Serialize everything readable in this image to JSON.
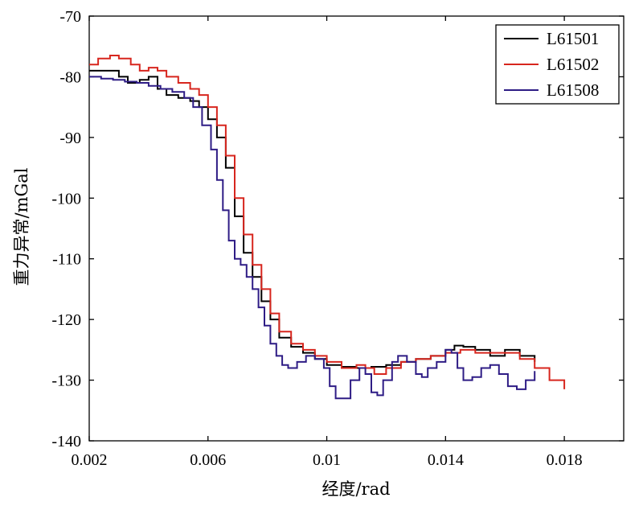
{
  "chart_data": {
    "type": "line",
    "xlabel": "经度/rad",
    "ylabel": "重力异常/mGal",
    "xlim": [
      0.002,
      0.02
    ],
    "ylim": [
      -140,
      -70
    ],
    "xticks": [
      "0.002",
      "0.006",
      "0.01",
      "0.014",
      "0.018"
    ],
    "xtick_values": [
      0.002,
      0.006,
      0.01,
      0.014,
      0.018
    ],
    "yticks": [
      "-70",
      "-80",
      "-90",
      "-100",
      "-110",
      "-120",
      "-130",
      "-140"
    ],
    "ytick_values": [
      -70,
      -80,
      -90,
      -100,
      -110,
      -120,
      -130,
      -140
    ],
    "grid": false,
    "legend_position": "top-right",
    "series": [
      {
        "name": "L61501",
        "color": "#000000",
        "x": [
          0.002,
          0.0025,
          0.003,
          0.0033,
          0.0037,
          0.004,
          0.0043,
          0.0046,
          0.005,
          0.0054,
          0.0057,
          0.006,
          0.0063,
          0.0066,
          0.0069,
          0.0072,
          0.0075,
          0.0078,
          0.0081,
          0.0084,
          0.0088,
          0.0092,
          0.0096,
          0.01,
          0.0105,
          0.011,
          0.0115,
          0.012,
          0.0125,
          0.013,
          0.0135,
          0.014,
          0.0143,
          0.0146,
          0.015,
          0.0155,
          0.016,
          0.0165,
          0.017
        ],
        "y": [
          -79,
          -79,
          -80,
          -81,
          -80.5,
          -80,
          -82,
          -83,
          -83.5,
          -84,
          -85,
          -87,
          -90,
          -95,
          -103,
          -109,
          -113,
          -117,
          -120,
          -123,
          -124.5,
          -125.5,
          -126.5,
          -127.5,
          -127.8,
          -128,
          -127.8,
          -127.5,
          -127,
          -126.5,
          -126,
          -125,
          -124.3,
          -124.5,
          -125,
          -126,
          -125,
          -126,
          -127
        ]
      },
      {
        "name": "L61502",
        "color": "#d7261e",
        "x": [
          0.002,
          0.0023,
          0.0027,
          0.003,
          0.0034,
          0.0037,
          0.004,
          0.0043,
          0.0046,
          0.005,
          0.0054,
          0.0057,
          0.006,
          0.0063,
          0.0066,
          0.0069,
          0.0072,
          0.0075,
          0.0078,
          0.0081,
          0.0084,
          0.0088,
          0.0092,
          0.0096,
          0.01,
          0.0105,
          0.011,
          0.0113,
          0.0116,
          0.012,
          0.0125,
          0.013,
          0.0135,
          0.014,
          0.0145,
          0.015,
          0.0155,
          0.016,
          0.0165,
          0.017,
          0.0175,
          0.018
        ],
        "y": [
          -78,
          -77,
          -76.5,
          -77,
          -78,
          -79,
          -78.5,
          -79,
          -80,
          -81,
          -82,
          -83,
          -85,
          -88,
          -93,
          -100,
          -106,
          -111,
          -115,
          -119,
          -122,
          -124,
          -125,
          -126,
          -127,
          -128,
          -127.5,
          -128,
          -129,
          -128,
          -127,
          -126.5,
          -126,
          -125.5,
          -125,
          -125.5,
          -125.5,
          -125.5,
          -126.5,
          -128,
          -130,
          -131.5
        ]
      },
      {
        "name": "L61508",
        "color": "#2e1c85",
        "x": [
          0.002,
          0.0024,
          0.0028,
          0.0032,
          0.0036,
          0.004,
          0.0044,
          0.0048,
          0.0052,
          0.0055,
          0.0058,
          0.0061,
          0.0063,
          0.0065,
          0.0067,
          0.0069,
          0.0071,
          0.0073,
          0.0075,
          0.0077,
          0.0079,
          0.0081,
          0.0083,
          0.0085,
          0.0087,
          0.009,
          0.0093,
          0.0096,
          0.0099,
          0.0101,
          0.0103,
          0.0105,
          0.0108,
          0.0111,
          0.0113,
          0.0115,
          0.0117,
          0.0119,
          0.0122,
          0.0124,
          0.0127,
          0.013,
          0.0132,
          0.0134,
          0.0137,
          0.014,
          0.0142,
          0.0144,
          0.0146,
          0.0149,
          0.0152,
          0.0155,
          0.0158,
          0.0161,
          0.0164,
          0.0167,
          0.017
        ],
        "y": [
          -80,
          -80.3,
          -80.5,
          -80.8,
          -81,
          -81.5,
          -82,
          -82.5,
          -83.5,
          -85,
          -88,
          -92,
          -97,
          -102,
          -107,
          -110,
          -111,
          -113,
          -115,
          -118,
          -121,
          -124,
          -126,
          -127.5,
          -128,
          -127,
          -126,
          -126.5,
          -128,
          -131,
          -133,
          -133,
          -130,
          -128,
          -129,
          -132,
          -132.5,
          -130,
          -127,
          -126,
          -127,
          -129,
          -129.5,
          -128,
          -127,
          -125,
          -125.5,
          -128,
          -130,
          -129.5,
          -128,
          -127.5,
          -129,
          -131,
          -131.5,
          -130,
          -128.5
        ]
      }
    ]
  }
}
